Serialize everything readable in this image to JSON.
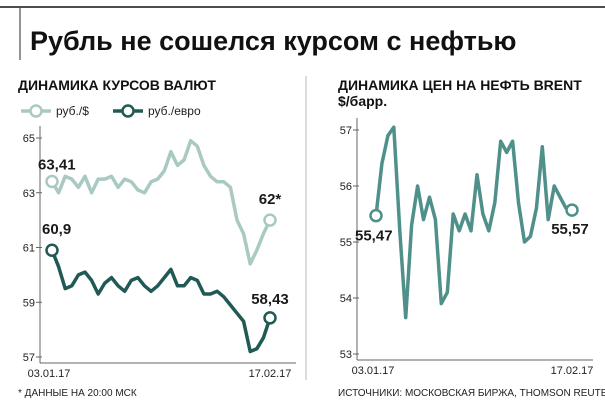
{
  "headline": "Рубль не сошелся курсом с нефтью",
  "footnote": "* ДАННЫЕ НА 20:00 МСК",
  "sources": "ИСТОЧНИКИ: МОСКОВСКАЯ БИРЖА, THOMSON REUTERS",
  "colors": {
    "background": "#ffffff",
    "usd": "#a9c9c2",
    "eur": "#215a55",
    "brent": "#4f908a",
    "axis": "#666666",
    "text": "#1b1b1b"
  },
  "chart_data": [
    {
      "type": "line",
      "title": "ДИНАМИКА КУРСОВ ВАЛЮТ",
      "x_labels": [
        "03.01.17",
        "17.02.17"
      ],
      "ylim": [
        57,
        65
      ],
      "yticks": [
        57,
        59,
        61,
        63,
        65
      ],
      "grid": false,
      "legend": "top-left",
      "series": [
        {
          "name": "руб./$",
          "color": "#a9c9c2",
          "values": [
            63.41,
            63.0,
            63.6,
            63.5,
            63.2,
            63.6,
            63.0,
            63.5,
            63.5,
            63.6,
            63.2,
            63.5,
            63.4,
            63.1,
            63.0,
            63.4,
            63.5,
            63.8,
            64.5,
            64.0,
            64.2,
            64.9,
            64.7,
            64.0,
            63.6,
            63.4,
            63.4,
            63.2,
            62.0,
            61.5,
            60.4,
            60.9,
            61.5,
            62.0
          ],
          "start_label": "63,41",
          "end_label": "62*"
        },
        {
          "name": "руб./евро",
          "color": "#215a55",
          "values": [
            60.9,
            60.3,
            59.5,
            59.6,
            60.0,
            60.1,
            59.8,
            59.3,
            59.7,
            59.9,
            59.6,
            59.4,
            59.8,
            59.9,
            59.6,
            59.4,
            59.6,
            59.9,
            60.2,
            59.6,
            59.6,
            59.9,
            59.8,
            59.3,
            59.3,
            59.4,
            59.2,
            58.9,
            58.6,
            58.3,
            57.2,
            57.3,
            57.7,
            58.43
          ],
          "start_label": "60,9",
          "end_label": "58,43"
        }
      ]
    },
    {
      "type": "line",
      "title": "ДИНАМИКА ЦЕН НА НЕФТЬ BRENT",
      "ylabel": "$/барр.",
      "x_labels": [
        "03.01.17",
        "17.02.17"
      ],
      "ylim": [
        53,
        57
      ],
      "yticks": [
        53,
        54,
        55,
        56,
        57
      ],
      "grid": false,
      "series": [
        {
          "color": "#4f908a",
          "values": [
            55.47,
            56.4,
            56.9,
            57.05,
            55.2,
            53.65,
            55.3,
            56.0,
            55.4,
            55.8,
            55.4,
            53.9,
            54.1,
            55.5,
            55.2,
            55.5,
            55.2,
            56.2,
            55.5,
            55.2,
            55.7,
            56.8,
            56.6,
            56.8,
            55.7,
            55.0,
            55.1,
            55.6,
            56.7,
            55.4,
            56.0,
            55.8,
            55.6,
            55.57
          ],
          "start_label": "55,47",
          "end_label": "55,57"
        }
      ]
    }
  ]
}
